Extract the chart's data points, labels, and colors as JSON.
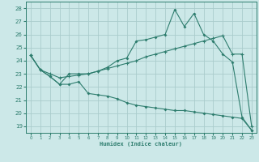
{
  "xlabel": "Humidex (Indice chaleur)",
  "xlim": [
    -0.5,
    23.5
  ],
  "ylim": [
    18.5,
    28.5
  ],
  "yticks": [
    19,
    20,
    21,
    22,
    23,
    24,
    25,
    26,
    27,
    28
  ],
  "xticks": [
    0,
    1,
    2,
    3,
    4,
    5,
    6,
    7,
    8,
    9,
    10,
    11,
    12,
    13,
    14,
    15,
    16,
    17,
    18,
    19,
    20,
    21,
    22,
    23
  ],
  "bg_color": "#cce8e8",
  "grid_color": "#aacccc",
  "line_color": "#2e7d6e",
  "line1_x": [
    0,
    1,
    2,
    3,
    4,
    5,
    6,
    7,
    8,
    9,
    10,
    11,
    12,
    13,
    14,
    15,
    16,
    17,
    18,
    19,
    20,
    21,
    22,
    23
  ],
  "line1_y": [
    24.4,
    23.3,
    22.8,
    22.2,
    23.0,
    23.0,
    23.0,
    23.2,
    23.5,
    24.0,
    24.2,
    25.5,
    25.6,
    25.8,
    26.0,
    27.9,
    26.6,
    27.6,
    26.0,
    25.5,
    24.5,
    23.9,
    19.7,
    18.7
  ],
  "line2_x": [
    0,
    1,
    2,
    3,
    4,
    5,
    6,
    7,
    8,
    9,
    10,
    11,
    12,
    13,
    14,
    15,
    16,
    17,
    18,
    19,
    20,
    21,
    22,
    23
  ],
  "line2_y": [
    24.4,
    23.3,
    23.0,
    22.7,
    22.8,
    22.9,
    23.0,
    23.2,
    23.4,
    23.6,
    23.8,
    24.0,
    24.3,
    24.5,
    24.7,
    24.9,
    25.1,
    25.3,
    25.5,
    25.7,
    25.9,
    24.5,
    24.5,
    19.0
  ],
  "line3_x": [
    0,
    1,
    2,
    3,
    4,
    5,
    6,
    7,
    8,
    9,
    10,
    11,
    12,
    13,
    14,
    15,
    16,
    17,
    18,
    19,
    20,
    21,
    22,
    23
  ],
  "line3_y": [
    24.4,
    23.3,
    22.8,
    22.2,
    22.2,
    22.4,
    21.5,
    21.4,
    21.3,
    21.1,
    20.8,
    20.6,
    20.5,
    20.4,
    20.3,
    20.2,
    20.2,
    20.1,
    20.0,
    19.9,
    19.8,
    19.7,
    19.6,
    18.7
  ]
}
